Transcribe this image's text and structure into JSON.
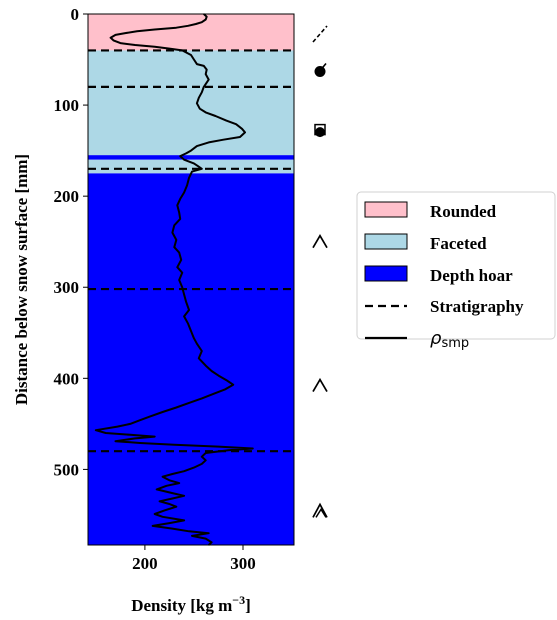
{
  "chart_data": {
    "type": "line",
    "orientation": "vertical-profile",
    "xlabel": "Density [kg m",
    "xlabel_sup": "−3",
    "xlabel_end": "]",
    "ylabel": "Distance below snow surface [mm]",
    "xlim": [
      142,
      352
    ],
    "ylim": [
      0,
      583
    ],
    "y_inverted": true,
    "xticks": [
      200,
      300
    ],
    "yticks": [
      0,
      100,
      200,
      300,
      400,
      500
    ],
    "grid": false,
    "legend_position": "right",
    "colors": {
      "rounded": "#ffc0cb",
      "faceted": "#add8e6",
      "depth_hoar": "#0000ff",
      "line": "#000000"
    },
    "layers": [
      {
        "name": "Rounded",
        "from": 0,
        "to": 40,
        "color": "#ffc0cb"
      },
      {
        "name": "Faceted",
        "from": 40,
        "to": 155,
        "color": "#add8e6"
      },
      {
        "name": "Depth hoar",
        "from": 155,
        "to": 160,
        "color": "#0000ff"
      },
      {
        "name": "Faceted",
        "from": 160,
        "to": 175,
        "color": "#add8e6"
      },
      {
        "name": "Depth hoar",
        "from": 175,
        "to": 583,
        "color": "#0000ff"
      }
    ],
    "stratigraphy_depths": [
      40,
      80,
      170,
      302,
      480
    ],
    "grain_symbols": [
      {
        "depth": 22,
        "icon": "decomposing-precipitation-icon"
      },
      {
        "depth": 62,
        "icon": "rounded-faceted-icon"
      },
      {
        "depth": 128,
        "icon": "faceted-rounding-icon"
      },
      {
        "depth": 250,
        "icon": "depth-hoar-icon"
      },
      {
        "depth": 408,
        "icon": "depth-hoar-icon"
      },
      {
        "depth": 545,
        "icon": "chain-depth-hoar-icon"
      }
    ],
    "series": [
      {
        "name": "ρsmp",
        "points": [
          [
            260,
            0
          ],
          [
            263,
            3
          ],
          [
            262,
            6
          ],
          [
            258,
            9
          ],
          [
            252,
            11
          ],
          [
            244,
            13
          ],
          [
            232,
            15
          ],
          [
            210,
            17
          ],
          [
            192,
            19
          ],
          [
            180,
            21
          ],
          [
            170,
            23
          ],
          [
            165,
            26
          ],
          [
            168,
            29
          ],
          [
            175,
            32
          ],
          [
            190,
            34
          ],
          [
            210,
            36
          ],
          [
            225,
            38
          ],
          [
            238,
            40
          ],
          [
            247,
            45
          ],
          [
            250,
            50
          ],
          [
            253,
            55
          ],
          [
            260,
            57
          ],
          [
            263,
            61
          ],
          [
            262,
            66
          ],
          [
            265,
            72
          ],
          [
            260,
            80
          ],
          [
            258,
            86
          ],
          [
            255,
            92
          ],
          [
            253,
            98
          ],
          [
            256,
            104
          ],
          [
            262,
            108
          ],
          [
            272,
            112
          ],
          [
            283,
            117
          ],
          [
            293,
            121
          ],
          [
            299,
            126
          ],
          [
            302,
            130
          ],
          [
            297,
            135
          ],
          [
            280,
            138
          ],
          [
            265,
            141
          ],
          [
            253,
            145
          ],
          [
            247,
            150
          ],
          [
            242,
            153
          ],
          [
            236,
            156
          ],
          [
            240,
            160
          ],
          [
            250,
            164
          ],
          [
            254,
            167
          ],
          [
            258,
            170
          ],
          [
            248,
            173
          ],
          [
            245,
            180
          ],
          [
            243,
            188
          ],
          [
            240,
            196
          ],
          [
            236,
            203
          ],
          [
            233,
            210
          ],
          [
            235,
            218
          ],
          [
            236,
            225
          ],
          [
            230,
            232
          ],
          [
            228,
            240
          ],
          [
            232,
            248
          ],
          [
            230,
            256
          ],
          [
            235,
            262
          ],
          [
            237,
            270
          ],
          [
            233,
            278
          ],
          [
            238,
            284
          ],
          [
            235,
            292
          ],
          [
            238,
            300
          ],
          [
            240,
            308
          ],
          [
            242,
            316
          ],
          [
            245,
            325
          ],
          [
            240,
            332
          ],
          [
            244,
            340
          ],
          [
            247,
            348
          ],
          [
            250,
            356
          ],
          [
            253,
            362
          ],
          [
            258,
            370
          ],
          [
            255,
            378
          ],
          [
            262,
            386
          ],
          [
            268,
            392
          ],
          [
            275,
            397
          ],
          [
            283,
            402
          ],
          [
            290,
            407
          ],
          [
            282,
            412
          ],
          [
            270,
            417
          ],
          [
            258,
            422
          ],
          [
            245,
            427
          ],
          [
            232,
            432
          ],
          [
            218,
            437
          ],
          [
            205,
            442
          ],
          [
            195,
            446
          ],
          [
            185,
            450
          ],
          [
            172,
            453
          ],
          [
            150,
            457
          ],
          [
            160,
            460
          ],
          [
            185,
            462
          ],
          [
            210,
            464
          ],
          [
            190,
            466
          ],
          [
            170,
            469
          ],
          [
            195,
            471
          ],
          [
            230,
            473
          ],
          [
            275,
            475
          ],
          [
            310,
            477
          ],
          [
            285,
            479
          ],
          [
            262,
            482
          ],
          [
            258,
            486
          ],
          [
            262,
            490
          ],
          [
            258,
            494
          ],
          [
            250,
            498
          ],
          [
            240,
            502
          ],
          [
            228,
            505
          ],
          [
            218,
            508
          ],
          [
            225,
            512
          ],
          [
            235,
            515
          ],
          [
            222,
            518
          ],
          [
            212,
            522
          ],
          [
            228,
            526
          ],
          [
            240,
            529
          ],
          [
            228,
            532
          ],
          [
            215,
            535
          ],
          [
            225,
            538
          ],
          [
            232,
            541
          ],
          [
            220,
            545
          ],
          [
            210,
            549
          ],
          [
            218,
            552
          ],
          [
            240,
            556
          ],
          [
            225,
            559
          ],
          [
            208,
            562
          ],
          [
            228,
            565
          ],
          [
            245,
            568
          ],
          [
            265,
            570
          ],
          [
            248,
            573
          ],
          [
            262,
            576
          ],
          [
            268,
            580
          ],
          [
            265,
            583
          ]
        ]
      }
    ],
    "legend": [
      {
        "label": "Rounded",
        "kind": "patch",
        "color": "#ffc0cb"
      },
      {
        "label": "Faceted",
        "kind": "patch",
        "color": "#add8e6"
      },
      {
        "label": "Depth hoar",
        "kind": "patch",
        "color": "#0000ff"
      },
      {
        "label": "Stratigraphy",
        "kind": "dashed"
      },
      {
        "label": "ρ",
        "sub": "smp",
        "kind": "solid"
      }
    ]
  }
}
